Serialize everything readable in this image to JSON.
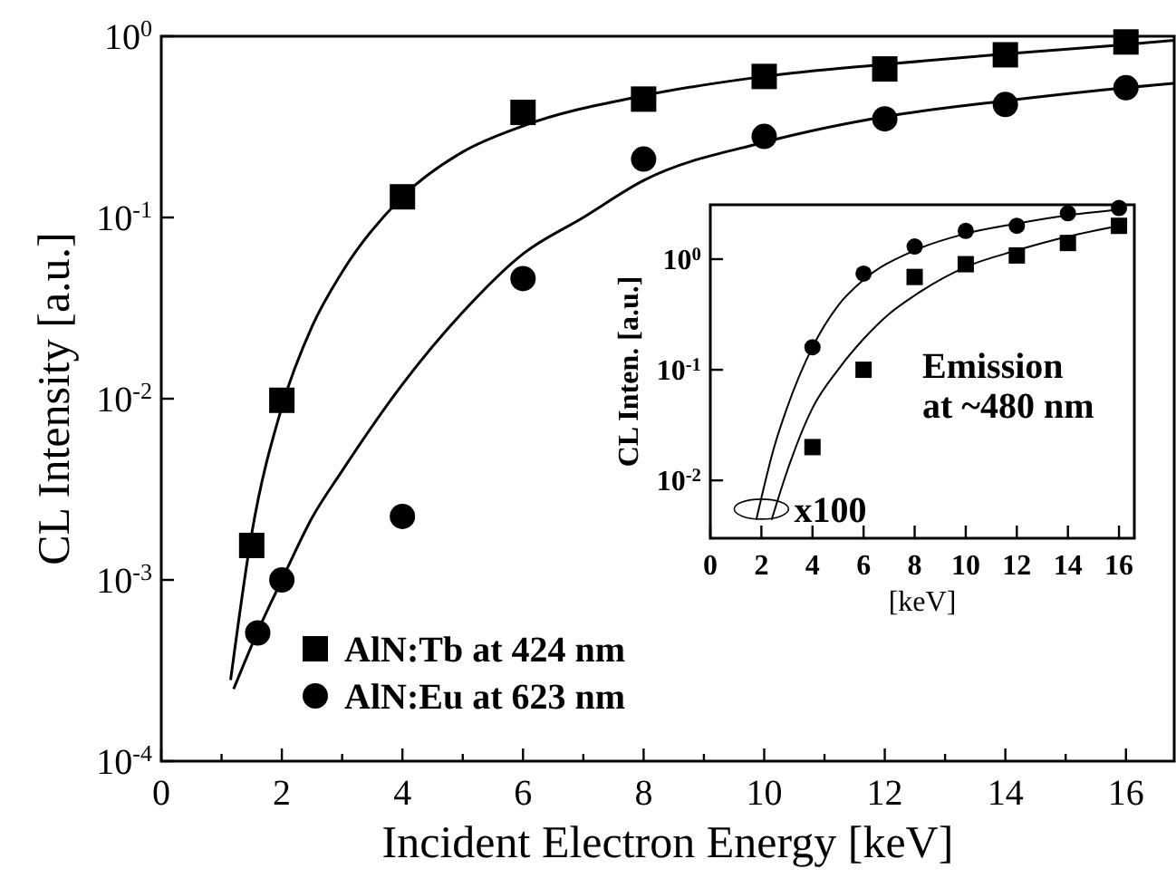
{
  "chart_data": [
    {
      "type": "scatter",
      "xlabel": "Incident Electron Energy [keV]",
      "ylabel": "CL Intensity [a.u.]",
      "log": "y",
      "xlim": [
        0,
        16.8
      ],
      "ylim": [
        0.0001,
        1
      ],
      "xticks": [
        0,
        {
          "value": 1,
          "label": null
        },
        2,
        {
          "value": 3,
          "label": null
        },
        4,
        {
          "value": 5,
          "label": null
        },
        6,
        {
          "value": 7,
          "label": null
        },
        8,
        {
          "value": 9,
          "label": null
        },
        10,
        {
          "value": 11,
          "label": null
        },
        12,
        {
          "value": 13,
          "label": null
        },
        14,
        {
          "value": 15,
          "label": null
        },
        16
      ],
      "yticks": [
        {
          "value": 0.0001,
          "label": "10$^{-4}$"
        },
        {
          "value": 0.001,
          "label": "10$^{-3}$"
        },
        {
          "value": 0.01,
          "label": "10$^{-2}$"
        },
        {
          "value": 0.1,
          "label": "10$^{-1}$"
        },
        {
          "value": 1,
          "label": "10$^{0}$"
        }
      ],
      "legend": "bottom left",
      "grid": false,
      "series": [
        {
          "name": "AlN:Tb at 424 nm",
          "color": "#000000",
          "marker": "square",
          "x": [
            1.5,
            2,
            4,
            6,
            8,
            10,
            12,
            14,
            16
          ],
          "values": [
            0.00155,
            0.0098,
            0.13,
            0.38,
            0.45,
            0.6,
            0.66,
            0.79,
            0.93
          ]
        },
        {
          "name": "AlN:Eu at 623 nm",
          "color": "#000000",
          "marker": "circle",
          "x": [
            1.6,
            2,
            4,
            6,
            8,
            10,
            12,
            14,
            16
          ],
          "values": [
            0.00051,
            0.001,
            0.00224,
            0.046,
            0.21,
            0.28,
            0.35,
            0.42,
            0.52
          ]
        },
        {
          "type": "line",
          "color": "#000000",
          "marker": "none",
          "x": [
            1.15,
            1.5,
            2,
            2.5,
            3,
            4,
            5,
            6,
            8,
            10,
            12,
            14,
            16,
            16.8
          ],
          "values": [
            0.00028,
            0.0018,
            0.009,
            0.025,
            0.05,
            0.13,
            0.23,
            0.32,
            0.47,
            0.6,
            0.7,
            0.8,
            0.9,
            0.95
          ]
        },
        {
          "type": "line",
          "color": "#000000",
          "marker": "none",
          "x": [
            1.2,
            1.6,
            2,
            2.5,
            3,
            4,
            5,
            6,
            7,
            8,
            10,
            12,
            14,
            16,
            16.8
          ],
          "values": [
            0.00025,
            0.00052,
            0.001,
            0.0022,
            0.004,
            0.012,
            0.03,
            0.063,
            0.1,
            0.16,
            0.26,
            0.36,
            0.44,
            0.52,
            0.55
          ]
        }
      ]
    },
    {
      "type": "scatter",
      "xlabel": "[keV]",
      "ylabel": "CL Inten. [a.u.]",
      "log": "y",
      "xlim": [
        0,
        16.6
      ],
      "ylim": [
        0.003,
        3.1
      ],
      "xticks": [
        0,
        2,
        4,
        6,
        8,
        10,
        12,
        14,
        16
      ],
      "yticks": [
        {
          "value": 0.01,
          "label": "10$^{-2}$"
        },
        {
          "value": 0.1,
          "label": "10$^{-1}$"
        },
        {
          "value": 1,
          "label": "10$^{0}$"
        }
      ],
      "annotations": [
        "Emission",
        "at ~480 nm",
        {
          "text": "x100",
          "x": 2,
          "y": 0.0055
        }
      ],
      "grid": false,
      "series": [
        {
          "color": "#000000",
          "marker": "circle",
          "x": [
            4,
            6,
            8,
            10,
            12,
            14,
            16
          ],
          "values": [
            0.16,
            0.74,
            1.3,
            1.8,
            2.0,
            2.6,
            2.9
          ]
        },
        {
          "color": "#000000",
          "marker": "square",
          "x": [
            4,
            6,
            8,
            10,
            12,
            14,
            16
          ],
          "values": [
            0.02,
            0.1,
            0.69,
            0.9,
            1.08,
            1.4,
            2.0
          ]
        },
        {
          "type": "line",
          "color": "#000000",
          "marker": "none",
          "x": [
            1.8,
            2.5,
            3,
            4,
            5,
            6,
            8,
            10,
            12,
            14,
            16
          ],
          "values": [
            0.0044,
            0.02,
            0.045,
            0.16,
            0.38,
            0.65,
            1.2,
            1.7,
            2.1,
            2.5,
            2.8
          ]
        },
        {
          "type": "line",
          "color": "#000000",
          "marker": "none",
          "x": [
            2.4,
            3,
            4,
            5,
            6,
            7,
            8,
            10,
            12,
            14,
            16
          ],
          "values": [
            0.0044,
            0.012,
            0.045,
            0.1,
            0.19,
            0.32,
            0.47,
            0.85,
            1.2,
            1.6,
            2.0
          ]
        }
      ]
    }
  ]
}
